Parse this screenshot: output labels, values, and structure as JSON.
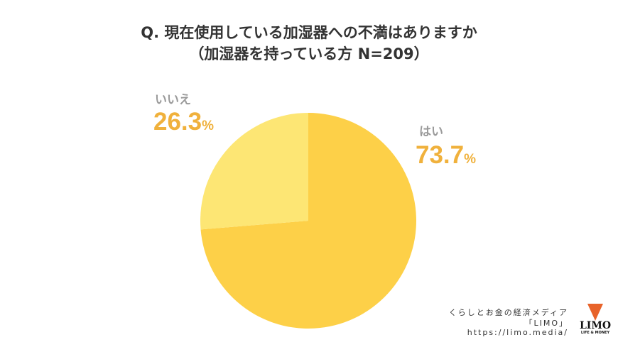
{
  "chart_data": {
    "type": "pie",
    "title": "Q. 現在使用している加湿器への不満はありますか",
    "subtitle": "（加湿器を持っている方 N=209）",
    "slices": [
      {
        "label": "はい",
        "value": 73.7,
        "display": "73.7",
        "color": "#fdd048"
      },
      {
        "label": "いいえ",
        "value": 26.3,
        "display": "26.3",
        "color": "#fde674"
      }
    ],
    "unit": "%",
    "start": "12 o'clock, clockwise"
  },
  "credit": {
    "line1": "くらしとお金の経済メディア",
    "line2": "「LIMO」",
    "line3": "https://limo.media/"
  },
  "logo": {
    "name": "LIMO",
    "sub": "LIFE & MONEY"
  }
}
